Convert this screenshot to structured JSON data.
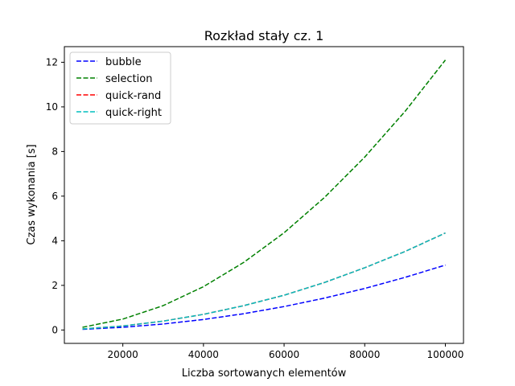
{
  "chart_data": {
    "type": "line",
    "title": "Rozkład stały cz. 1",
    "xlabel": "Liczba sortowanych elementów",
    "ylabel": "Czas wykonania [s]",
    "xlim": [
      5500,
      104500
    ],
    "ylim": [
      -0.6,
      12.7
    ],
    "xticks": [
      20000,
      40000,
      60000,
      80000,
      100000
    ],
    "yticks": [
      0,
      2,
      4,
      6,
      8,
      10,
      12
    ],
    "x": [
      10000,
      20000,
      30000,
      40000,
      50000,
      60000,
      70000,
      80000,
      90000,
      100000
    ],
    "grid": false,
    "legend_position": "top-left",
    "series": [
      {
        "name": "bubble",
        "color": "#0000ff",
        "style": "dashed",
        "values": [
          0.03,
          0.12,
          0.27,
          0.47,
          0.73,
          1.05,
          1.43,
          1.86,
          2.36,
          2.91
        ]
      },
      {
        "name": "selection",
        "color": "#008000",
        "style": "dashed",
        "values": [
          0.12,
          0.49,
          1.09,
          1.94,
          3.03,
          4.36,
          5.94,
          7.75,
          9.8,
          12.1
        ]
      },
      {
        "name": "quick-rand",
        "color": "#ff0000",
        "style": "dashed",
        "values": [
          0.05,
          0.18,
          0.4,
          0.7,
          1.09,
          1.56,
          2.13,
          2.79,
          3.52,
          4.35
        ]
      },
      {
        "name": "quick-right",
        "color": "#00bfbf",
        "style": "dashed",
        "values": [
          0.05,
          0.18,
          0.4,
          0.7,
          1.09,
          1.56,
          2.13,
          2.79,
          3.52,
          4.35
        ]
      }
    ]
  }
}
